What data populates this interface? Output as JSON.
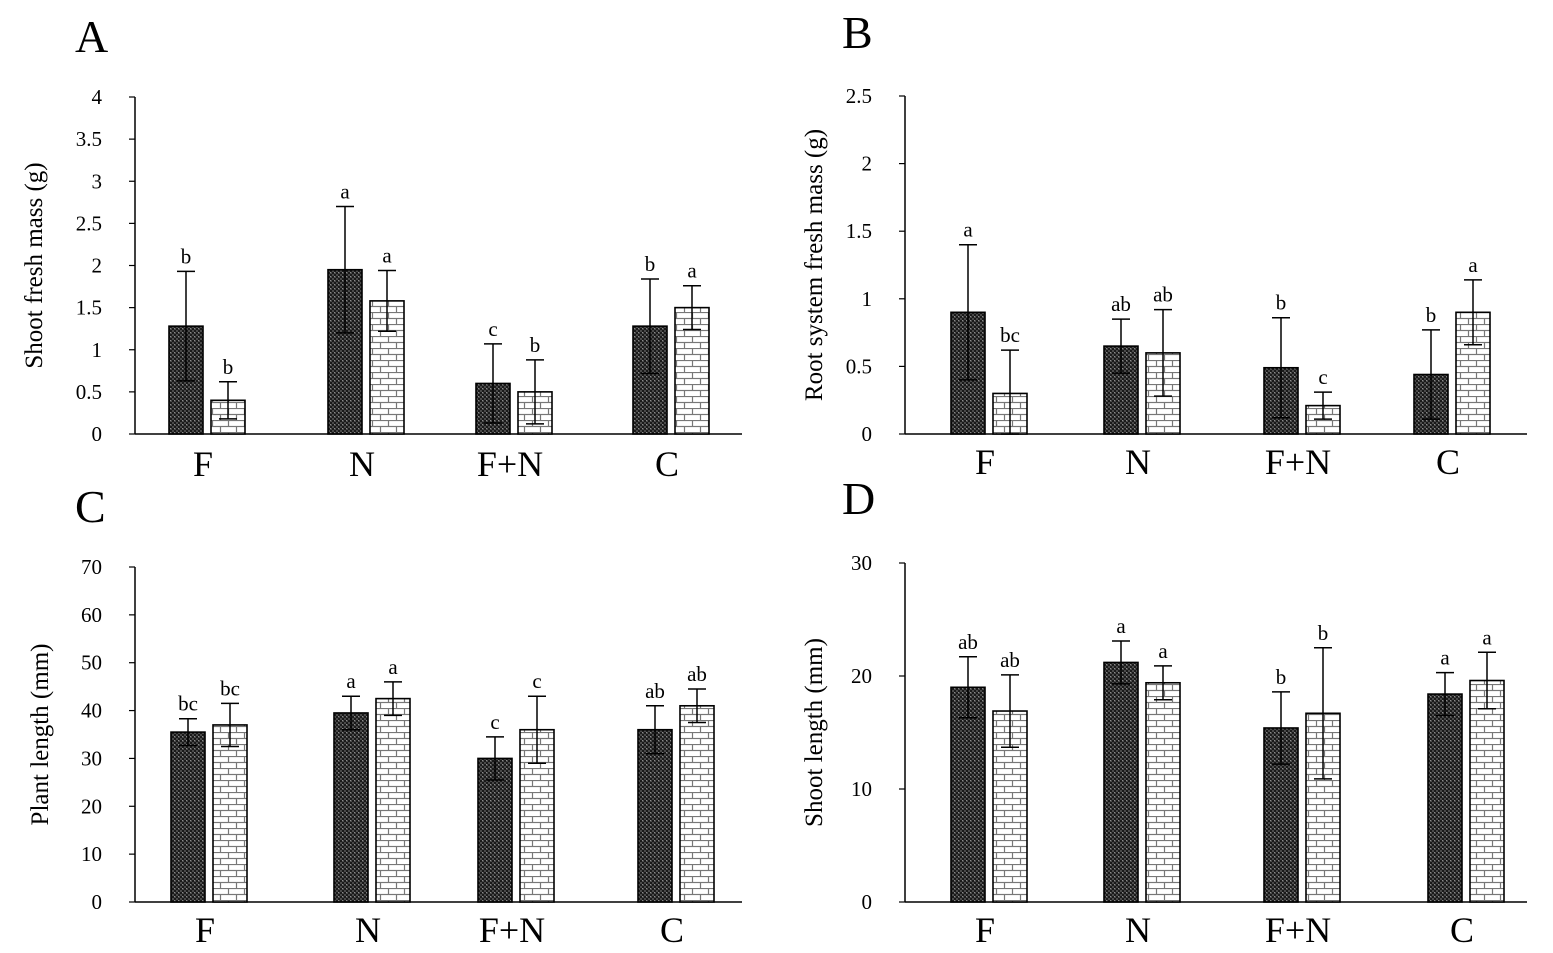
{
  "chart_data": [
    {
      "panel": "A",
      "type": "bar",
      "categories": [
        "F",
        "N",
        "F+N",
        "C"
      ],
      "ylabel": "Shoot fresh mass (g)",
      "ylim": [
        0,
        4
      ],
      "yticks": [
        "0",
        "0.5",
        "1",
        "1.5",
        "2",
        "2.5",
        "3",
        "3.5",
        "4"
      ],
      "grid": false,
      "series": [
        {
          "pattern": "dots",
          "values": [
            1.28,
            1.95,
            0.6,
            1.28
          ],
          "errors": [
            0.65,
            0.75,
            0.47,
            0.56
          ],
          "letters": [
            "b",
            "a",
            "c",
            "b"
          ]
        },
        {
          "pattern": "bricks",
          "values": [
            0.4,
            1.58,
            0.5,
            1.5
          ],
          "errors": [
            0.22,
            0.36,
            0.38,
            0.26
          ],
          "letters": [
            "b",
            "a",
            "b",
            "a"
          ]
        }
      ]
    },
    {
      "panel": "B",
      "type": "bar",
      "categories": [
        "F",
        "N",
        "F+N",
        "C"
      ],
      "ylabel": "Root system fresh mass (g)",
      "ylim": [
        0,
        2.5
      ],
      "yticks": [
        "0",
        "0.5",
        "1",
        "1.5",
        "2",
        "2.5"
      ],
      "grid": false,
      "series": [
        {
          "pattern": "dots",
          "values": [
            0.9,
            0.65,
            0.49,
            0.44
          ],
          "errors": [
            0.5,
            0.2,
            0.37,
            0.33
          ],
          "letters": [
            "a",
            "ab",
            "b",
            "b"
          ]
        },
        {
          "pattern": "bricks",
          "values": [
            0.3,
            0.6,
            0.21,
            0.9
          ],
          "errors": [
            0.32,
            0.32,
            0.1,
            0.24
          ],
          "letters": [
            "bc",
            "ab",
            "c",
            "a"
          ]
        }
      ]
    },
    {
      "panel": "C",
      "type": "bar",
      "categories": [
        "F",
        "N",
        "F+N",
        "C"
      ],
      "ylabel": "Plant length  (mm)",
      "ylim": [
        0,
        70
      ],
      "yticks": [
        "0",
        "10",
        "20",
        "30",
        "40",
        "50",
        "60",
        "70"
      ],
      "grid": false,
      "series": [
        {
          "pattern": "dots",
          "values": [
            35.5,
            39.5,
            30,
            36
          ],
          "errors": [
            2.8,
            3.5,
            4.5,
            5
          ],
          "letters": [
            "bc",
            "a",
            "c",
            "ab"
          ]
        },
        {
          "pattern": "bricks",
          "values": [
            37,
            42.5,
            36,
            41
          ],
          "errors": [
            4.5,
            3.5,
            7,
            3.5
          ],
          "letters": [
            "bc",
            "a",
            "c",
            "ab"
          ]
        }
      ]
    },
    {
      "panel": "D",
      "type": "bar",
      "categories": [
        "F",
        "N",
        "F+N",
        "C"
      ],
      "ylabel": "Shoot length  (mm)",
      "ylim": [
        0,
        30
      ],
      "yticks": [
        "0",
        "10",
        "20",
        "30"
      ],
      "grid": false,
      "series": [
        {
          "pattern": "dots",
          "values": [
            19,
            21.2,
            15.4,
            18.4
          ],
          "errors": [
            2.7,
            1.9,
            3.2,
            1.9
          ],
          "letters": [
            "ab",
            "a",
            "b",
            "a"
          ]
        },
        {
          "pattern": "bricks",
          "values": [
            16.9,
            19.4,
            16.7,
            19.6
          ],
          "errors": [
            3.2,
            1.5,
            5.8,
            2.5
          ],
          "letters": [
            "ab",
            "a",
            "b",
            "a"
          ]
        }
      ]
    }
  ]
}
